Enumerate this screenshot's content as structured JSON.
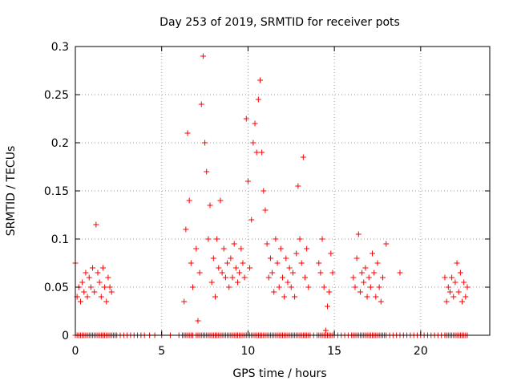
{
  "chart_data": {
    "type": "scatter",
    "title": "Day 253 of 2019, SRMTID for receiver pots",
    "xlabel": "GPS time / hours",
    "ylabel": "SRMTID / TECUs",
    "xlim": [
      0,
      24
    ],
    "ylim": [
      0,
      0.3
    ],
    "xticks": [
      0,
      5,
      10,
      15,
      20
    ],
    "yticks": [
      0,
      0.05,
      0.1,
      0.15,
      0.2,
      0.25,
      0.3
    ],
    "xtick_labels": [
      "0",
      "5",
      "10",
      "15",
      "20"
    ],
    "ytick_labels": [
      "0",
      "0.05",
      "0.1",
      "0.15",
      "0.2",
      "0.25",
      "0.3"
    ],
    "grid": true,
    "marker": "+",
    "color": "#ff0000",
    "x_precision": 0.05,
    "y_precision": 0.005,
    "points": [
      [
        0.0,
        0.075
      ],
      [
        0.0,
        0.0
      ],
      [
        0.1,
        0.04
      ],
      [
        0.1,
        0.0
      ],
      [
        0.2,
        0.05
      ],
      [
        0.2,
        0.0
      ],
      [
        0.3,
        0.035
      ],
      [
        0.3,
        0.0
      ],
      [
        0.4,
        0.055
      ],
      [
        0.4,
        0.0
      ],
      [
        0.5,
        0.045
      ],
      [
        0.5,
        0.0
      ],
      [
        0.6,
        0.065
      ],
      [
        0.6,
        0.0
      ],
      [
        0.7,
        0.04
      ],
      [
        0.7,
        0.0
      ],
      [
        0.8,
        0.06
      ],
      [
        0.8,
        0.0
      ],
      [
        0.9,
        0.05
      ],
      [
        0.9,
        0.0
      ],
      [
        1.0,
        0.07
      ],
      [
        1.0,
        0.0
      ],
      [
        1.1,
        0.045
      ],
      [
        1.1,
        0.0
      ],
      [
        1.2,
        0.115
      ],
      [
        1.2,
        0.0
      ],
      [
        1.3,
        0.065
      ],
      [
        1.3,
        0.0
      ],
      [
        1.4,
        0.055
      ],
      [
        1.4,
        0.0
      ],
      [
        1.5,
        0.04
      ],
      [
        1.5,
        0.0
      ],
      [
        1.6,
        0.07
      ],
      [
        1.6,
        0.0
      ],
      [
        1.7,
        0.05
      ],
      [
        1.7,
        0.0
      ],
      [
        1.8,
        0.035
      ],
      [
        1.8,
        0.0
      ],
      [
        1.9,
        0.06
      ],
      [
        1.9,
        0.0
      ],
      [
        2.0,
        0.05
      ],
      [
        2.0,
        0.0
      ],
      [
        2.1,
        0.045
      ],
      [
        2.1,
        0.0
      ],
      [
        2.2,
        0.0
      ],
      [
        2.3,
        0.0
      ],
      [
        2.4,
        0.0
      ],
      [
        2.6,
        0.0
      ],
      [
        2.8,
        0.0
      ],
      [
        3.0,
        0.0
      ],
      [
        3.2,
        0.0
      ],
      [
        3.4,
        0.0
      ],
      [
        3.6,
        0.0
      ],
      [
        3.8,
        0.0
      ],
      [
        4.0,
        0.0
      ],
      [
        4.3,
        0.0
      ],
      [
        4.6,
        0.0
      ],
      [
        5.0,
        0.0
      ],
      [
        5.5,
        0.0
      ],
      [
        6.0,
        0.0
      ],
      [
        6.2,
        0.0
      ],
      [
        6.3,
        0.035
      ],
      [
        6.3,
        0.0
      ],
      [
        6.4,
        0.11
      ],
      [
        6.4,
        0.0
      ],
      [
        6.5,
        0.21
      ],
      [
        6.5,
        0.0
      ],
      [
        6.6,
        0.14
      ],
      [
        6.6,
        0.0
      ],
      [
        6.7,
        0.075
      ],
      [
        6.7,
        0.0
      ],
      [
        6.8,
        0.05
      ],
      [
        6.8,
        0.0
      ],
      [
        7.0,
        0.09
      ],
      [
        7.0,
        0.0
      ],
      [
        7.1,
        0.015
      ],
      [
        7.1,
        0.0
      ],
      [
        7.2,
        0.065
      ],
      [
        7.2,
        0.0
      ],
      [
        7.3,
        0.24
      ],
      [
        7.3,
        0.0
      ],
      [
        7.4,
        0.29
      ],
      [
        7.4,
        0.0
      ],
      [
        7.5,
        0.2
      ],
      [
        7.5,
        0.0
      ],
      [
        7.6,
        0.17
      ],
      [
        7.6,
        0.0
      ],
      [
        7.7,
        0.1
      ],
      [
        7.7,
        0.0
      ],
      [
        7.8,
        0.135
      ],
      [
        7.8,
        0.0
      ],
      [
        7.9,
        0.055
      ],
      [
        7.9,
        0.0
      ],
      [
        8.0,
        0.08
      ],
      [
        8.0,
        0.0
      ],
      [
        8.1,
        0.04
      ],
      [
        8.1,
        0.0
      ],
      [
        8.2,
        0.1
      ],
      [
        8.2,
        0.0
      ],
      [
        8.3,
        0.07
      ],
      [
        8.3,
        0.0
      ],
      [
        8.4,
        0.14
      ],
      [
        8.4,
        0.0
      ],
      [
        8.5,
        0.065
      ],
      [
        8.5,
        0.0
      ],
      [
        8.6,
        0.09
      ],
      [
        8.6,
        0.0
      ],
      [
        8.7,
        0.06
      ],
      [
        8.7,
        0.0
      ],
      [
        8.8,
        0.075
      ],
      [
        8.8,
        0.0
      ],
      [
        8.9,
        0.05
      ],
      [
        8.9,
        0.0
      ],
      [
        9.0,
        0.08
      ],
      [
        9.0,
        0.0
      ],
      [
        9.1,
        0.06
      ],
      [
        9.1,
        0.0
      ],
      [
        9.2,
        0.095
      ],
      [
        9.2,
        0.0
      ],
      [
        9.3,
        0.07
      ],
      [
        9.3,
        0.0
      ],
      [
        9.4,
        0.055
      ],
      [
        9.4,
        0.0
      ],
      [
        9.5,
        0.065
      ],
      [
        9.5,
        0.0
      ],
      [
        9.6,
        0.09
      ],
      [
        9.6,
        0.0
      ],
      [
        9.7,
        0.075
      ],
      [
        9.7,
        0.0
      ],
      [
        9.8,
        0.06
      ],
      [
        9.8,
        0.0
      ],
      [
        9.9,
        0.225
      ],
      [
        9.9,
        0.0
      ],
      [
        10.0,
        0.16
      ],
      [
        10.0,
        0.0
      ],
      [
        10.1,
        0.07
      ],
      [
        10.1,
        0.0
      ],
      [
        10.2,
        0.12
      ],
      [
        10.2,
        0.0
      ],
      [
        10.3,
        0.2
      ],
      [
        10.3,
        0.0
      ],
      [
        10.4,
        0.22
      ],
      [
        10.4,
        0.0
      ],
      [
        10.5,
        0.19
      ],
      [
        10.5,
        0.0
      ],
      [
        10.6,
        0.245
      ],
      [
        10.6,
        0.0
      ],
      [
        10.7,
        0.265
      ],
      [
        10.7,
        0.0
      ],
      [
        10.8,
        0.19
      ],
      [
        10.8,
        0.0
      ],
      [
        10.9,
        0.15
      ],
      [
        10.9,
        0.0
      ],
      [
        11.0,
        0.13
      ],
      [
        11.0,
        0.0
      ],
      [
        11.1,
        0.095
      ],
      [
        11.1,
        0.0
      ],
      [
        11.2,
        0.06
      ],
      [
        11.2,
        0.0
      ],
      [
        11.3,
        0.08
      ],
      [
        11.3,
        0.0
      ],
      [
        11.4,
        0.065
      ],
      [
        11.4,
        0.0
      ],
      [
        11.5,
        0.045
      ],
      [
        11.5,
        0.0
      ],
      [
        11.6,
        0.1
      ],
      [
        11.6,
        0.0
      ],
      [
        11.7,
        0.075
      ],
      [
        11.7,
        0.0
      ],
      [
        11.8,
        0.05
      ],
      [
        11.8,
        0.0
      ],
      [
        11.9,
        0.09
      ],
      [
        11.9,
        0.0
      ],
      [
        12.0,
        0.06
      ],
      [
        12.0,
        0.0
      ],
      [
        12.1,
        0.04
      ],
      [
        12.1,
        0.0
      ],
      [
        12.2,
        0.08
      ],
      [
        12.2,
        0.0
      ],
      [
        12.3,
        0.055
      ],
      [
        12.3,
        0.0
      ],
      [
        12.4,
        0.07
      ],
      [
        12.4,
        0.0
      ],
      [
        12.5,
        0.05
      ],
      [
        12.5,
        0.0
      ],
      [
        12.6,
        0.065
      ],
      [
        12.6,
        0.0
      ],
      [
        12.7,
        0.04
      ],
      [
        12.7,
        0.0
      ],
      [
        12.8,
        0.085
      ],
      [
        12.8,
        0.0
      ],
      [
        12.9,
        0.155
      ],
      [
        12.9,
        0.0
      ],
      [
        13.0,
        0.1
      ],
      [
        13.0,
        0.0
      ],
      [
        13.1,
        0.075
      ],
      [
        13.1,
        0.0
      ],
      [
        13.2,
        0.185
      ],
      [
        13.2,
        0.0
      ],
      [
        13.3,
        0.06
      ],
      [
        13.3,
        0.0
      ],
      [
        13.4,
        0.09
      ],
      [
        13.4,
        0.0
      ],
      [
        13.5,
        0.05
      ],
      [
        13.5,
        0.0
      ],
      [
        13.6,
        0.0
      ],
      [
        13.8,
        0.0
      ],
      [
        14.0,
        0.0
      ],
      [
        14.1,
        0.075
      ],
      [
        14.1,
        0.0
      ],
      [
        14.2,
        0.065
      ],
      [
        14.2,
        0.0
      ],
      [
        14.3,
        0.1
      ],
      [
        14.3,
        0.0
      ],
      [
        14.4,
        0.05
      ],
      [
        14.4,
        0.0
      ],
      [
        14.5,
        0.005
      ],
      [
        14.5,
        0.0
      ],
      [
        14.6,
        0.03
      ],
      [
        14.6,
        0.0
      ],
      [
        14.7,
        0.045
      ],
      [
        14.7,
        0.0
      ],
      [
        14.8,
        0.085
      ],
      [
        14.8,
        0.0
      ],
      [
        14.9,
        0.065
      ],
      [
        14.9,
        0.0
      ],
      [
        15.0,
        0.0
      ],
      [
        15.2,
        0.0
      ],
      [
        15.4,
        0.0
      ],
      [
        15.6,
        0.0
      ],
      [
        15.8,
        0.0
      ],
      [
        16.0,
        0.0
      ],
      [
        16.1,
        0.06
      ],
      [
        16.1,
        0.0
      ],
      [
        16.2,
        0.05
      ],
      [
        16.2,
        0.0
      ],
      [
        16.3,
        0.08
      ],
      [
        16.3,
        0.0
      ],
      [
        16.4,
        0.105
      ],
      [
        16.4,
        0.0
      ],
      [
        16.5,
        0.045
      ],
      [
        16.5,
        0.0
      ],
      [
        16.6,
        0.065
      ],
      [
        16.6,
        0.0
      ],
      [
        16.7,
        0.055
      ],
      [
        16.7,
        0.0
      ],
      [
        16.8,
        0.07
      ],
      [
        16.8,
        0.0
      ],
      [
        16.9,
        0.04
      ],
      [
        16.9,
        0.0
      ],
      [
        17.0,
        0.06
      ],
      [
        17.0,
        0.0
      ],
      [
        17.1,
        0.05
      ],
      [
        17.1,
        0.0
      ],
      [
        17.2,
        0.085
      ],
      [
        17.2,
        0.0
      ],
      [
        17.3,
        0.065
      ],
      [
        17.3,
        0.0
      ],
      [
        17.4,
        0.04
      ],
      [
        17.4,
        0.0
      ],
      [
        17.5,
        0.075
      ],
      [
        17.5,
        0.0
      ],
      [
        17.6,
        0.05
      ],
      [
        17.6,
        0.0
      ],
      [
        17.7,
        0.035
      ],
      [
        17.7,
        0.0
      ],
      [
        17.8,
        0.06
      ],
      [
        17.8,
        0.0
      ],
      [
        17.9,
        0.0
      ],
      [
        18.0,
        0.095
      ],
      [
        18.0,
        0.0
      ],
      [
        18.2,
        0.0
      ],
      [
        18.4,
        0.0
      ],
      [
        18.6,
        0.0
      ],
      [
        18.8,
        0.065
      ],
      [
        18.8,
        0.0
      ],
      [
        19.0,
        0.0
      ],
      [
        19.2,
        0.0
      ],
      [
        19.4,
        0.0
      ],
      [
        19.6,
        0.0
      ],
      [
        19.8,
        0.0
      ],
      [
        20.0,
        0.0
      ],
      [
        20.2,
        0.0
      ],
      [
        20.4,
        0.0
      ],
      [
        20.6,
        0.0
      ],
      [
        20.8,
        0.0
      ],
      [
        21.0,
        0.0
      ],
      [
        21.2,
        0.0
      ],
      [
        21.4,
        0.06
      ],
      [
        21.4,
        0.0
      ],
      [
        21.5,
        0.035
      ],
      [
        21.5,
        0.0
      ],
      [
        21.6,
        0.05
      ],
      [
        21.6,
        0.0
      ],
      [
        21.7,
        0.045
      ],
      [
        21.7,
        0.0
      ],
      [
        21.8,
        0.06
      ],
      [
        21.8,
        0.0
      ],
      [
        21.9,
        0.04
      ],
      [
        21.9,
        0.0
      ],
      [
        22.0,
        0.055
      ],
      [
        22.0,
        0.0
      ],
      [
        22.1,
        0.075
      ],
      [
        22.1,
        0.0
      ],
      [
        22.2,
        0.045
      ],
      [
        22.2,
        0.0
      ],
      [
        22.3,
        0.065
      ],
      [
        22.3,
        0.0
      ],
      [
        22.4,
        0.035
      ],
      [
        22.4,
        0.0
      ],
      [
        22.5,
        0.055
      ],
      [
        22.5,
        0.0
      ],
      [
        22.6,
        0.04
      ],
      [
        22.6,
        0.0
      ],
      [
        22.7,
        0.05
      ],
      [
        22.7,
        0.0
      ]
    ]
  }
}
